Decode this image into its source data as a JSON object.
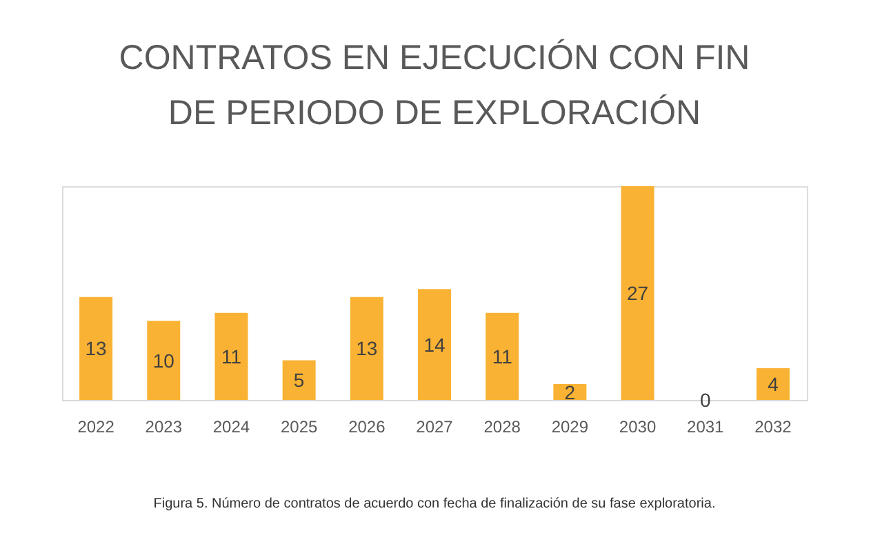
{
  "chart_data": {
    "type": "bar",
    "title": "CONTRATOS EN EJECUCIÓN CON FIN DE PERIODO DE EXPLORACIÓN",
    "categories": [
      "2022",
      "2023",
      "2024",
      "2025",
      "2026",
      "2027",
      "2028",
      "2029",
      "2030",
      "2031",
      "2032"
    ],
    "values": [
      13,
      10,
      11,
      5,
      13,
      14,
      11,
      2,
      27,
      0,
      4
    ],
    "color": "#f9b233",
    "data_labels": true,
    "grid": false,
    "annotations": [
      "Figura 5. Número de contratos de acuerdo con fecha de finalización de su fase exploratoria."
    ]
  }
}
